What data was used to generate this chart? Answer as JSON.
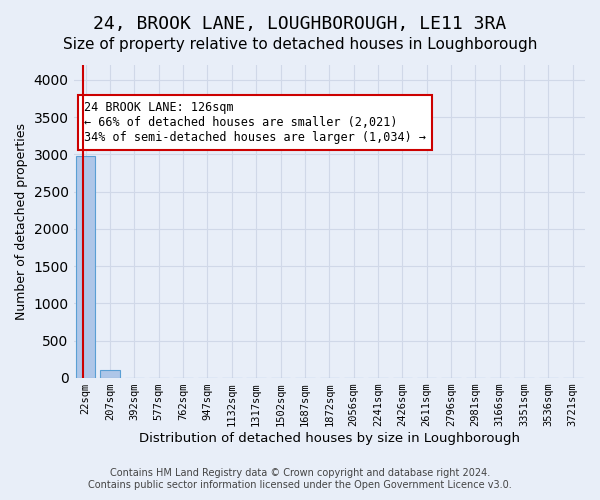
{
  "title": "24, BROOK LANE, LOUGHBOROUGH, LE11 3RA",
  "subtitle": "Size of property relative to detached houses in Loughborough",
  "xlabel": "Distribution of detached houses by size in Loughborough",
  "ylabel": "Number of detached properties",
  "footer_line1": "Contains HM Land Registry data © Crown copyright and database right 2024.",
  "footer_line2": "Contains public sector information licensed under the Open Government Licence v3.0.",
  "bin_labels": [
    "22sqm",
    "207sqm",
    "392sqm",
    "577sqm",
    "762sqm",
    "947sqm",
    "1132sqm",
    "1317sqm",
    "1502sqm",
    "1687sqm",
    "1872sqm",
    "2056sqm",
    "2241sqm",
    "2426sqm",
    "2611sqm",
    "2796sqm",
    "2981sqm",
    "3166sqm",
    "3351sqm",
    "3536sqm",
    "3721sqm"
  ],
  "bar_values": [
    2980,
    105,
    0,
    0,
    0,
    0,
    0,
    0,
    0,
    0,
    0,
    0,
    0,
    0,
    0,
    0,
    0,
    0,
    0,
    0,
    0
  ],
  "bar_color": "#aec6e8",
  "bar_edge_color": "#5a9fd4",
  "property_line_x": -0.12,
  "property_line_color": "#cc0000",
  "ylim": [
    0,
    4200
  ],
  "yticks": [
    0,
    500,
    1000,
    1500,
    2000,
    2500,
    3000,
    3500,
    4000
  ],
  "annotation_text": "24 BROOK LANE: 126sqm\n← 66% of detached houses are smaller (2,021)\n34% of semi-detached houses are larger (1,034) →",
  "annotation_box_facecolor": "#ffffff",
  "annotation_box_edgecolor": "#cc0000",
  "grid_color": "#d0d8e8",
  "bg_color": "#e8eef8",
  "title_fontsize": 13,
  "subtitle_fontsize": 11
}
